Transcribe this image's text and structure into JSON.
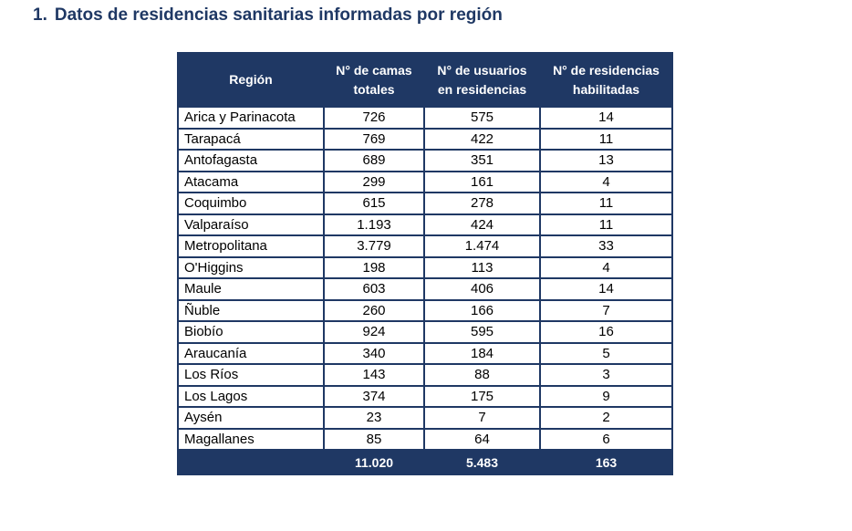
{
  "heading": {
    "number": "1.",
    "text": "Datos de residencias sanitarias informadas por región"
  },
  "table": {
    "headers": {
      "region": "Región",
      "camas": [
        "N° de camas",
        "totales"
      ],
      "usuarios": [
        "N° de usuarios",
        "en residencias"
      ],
      "residencias": [
        "N° de residencias",
        "habilitadas"
      ]
    },
    "rows": [
      {
        "region": "Arica y Parinacota",
        "camas": "726",
        "usuarios": "575",
        "residencias": "14"
      },
      {
        "region": "Tarapacá",
        "camas": "769",
        "usuarios": "422",
        "residencias": "11"
      },
      {
        "region": "Antofagasta",
        "camas": "689",
        "usuarios": "351",
        "residencias": "13"
      },
      {
        "region": "Atacama",
        "camas": "299",
        "usuarios": "161",
        "residencias": "4"
      },
      {
        "region": "Coquimbo",
        "camas": "615",
        "usuarios": "278",
        "residencias": "11"
      },
      {
        "region": "Valparaíso",
        "camas": "1.193",
        "usuarios": "424",
        "residencias": "11"
      },
      {
        "region": "Metropolitana",
        "camas": "3.779",
        "usuarios": "1.474",
        "residencias": "33"
      },
      {
        "region": "O'Higgins",
        "camas": "198",
        "usuarios": "113",
        "residencias": "4"
      },
      {
        "region": "Maule",
        "camas": "603",
        "usuarios": "406",
        "residencias": "14"
      },
      {
        "region": "Ñuble",
        "camas": "260",
        "usuarios": "166",
        "residencias": "7"
      },
      {
        "region": "Biobío",
        "camas": "924",
        "usuarios": "595",
        "residencias": "16"
      },
      {
        "region": "Araucanía",
        "camas": "340",
        "usuarios": "184",
        "residencias": "5"
      },
      {
        "region": "Los Ríos",
        "camas": "143",
        "usuarios": "88",
        "residencias": "3"
      },
      {
        "region": "Los Lagos",
        "camas": "374",
        "usuarios": "175",
        "residencias": "9"
      },
      {
        "region": "Aysén",
        "camas": "23",
        "usuarios": "7",
        "residencias": "2"
      },
      {
        "region": "Magallanes",
        "camas": "85",
        "usuarios": "64",
        "residencias": "6"
      }
    ],
    "totals": {
      "region": "",
      "camas": "11.020",
      "usuarios": "5.483",
      "residencias": "163"
    }
  },
  "colors": {
    "header_bg": "#1f3864",
    "header_text": "#ffffff",
    "title": "#1f3864"
  }
}
